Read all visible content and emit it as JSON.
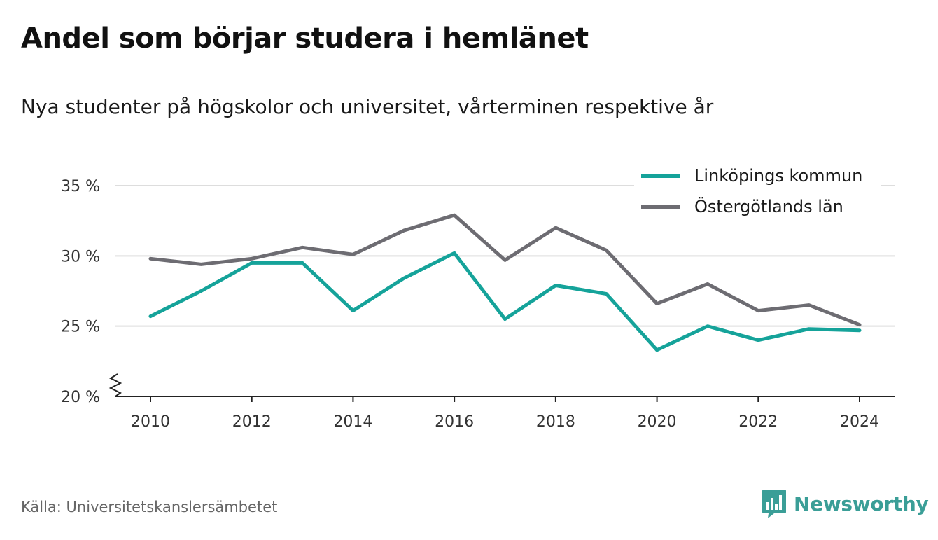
{
  "chart_data": {
    "type": "line",
    "title": "Andel som börjar studera i hemlänet",
    "subtitle": "Nya studenter på högskolor och universitet, vårterminen respektive år",
    "x": [
      2010,
      2011,
      2012,
      2013,
      2014,
      2015,
      2016,
      2017,
      2018,
      2019,
      2020,
      2021,
      2022,
      2023,
      2024
    ],
    "x_ticks": [
      2010,
      2012,
      2014,
      2016,
      2018,
      2020,
      2022,
      2024
    ],
    "y_ticks": [
      20,
      25,
      30,
      35
    ],
    "y_tick_suffix": " %",
    "ylim": [
      20,
      35
    ],
    "y_axis_break": true,
    "grid": true,
    "legend_position": "top-right",
    "series": [
      {
        "name": "Linköpings kommun",
        "color": "#15a39a",
        "values": [
          25.7,
          27.5,
          29.5,
          29.5,
          26.1,
          28.4,
          30.2,
          25.5,
          27.9,
          27.3,
          23.3,
          25.0,
          24.0,
          24.8,
          24.7
        ]
      },
      {
        "name": "Östergötlands län",
        "color": "#6d6c72",
        "values": [
          29.8,
          29.4,
          29.8,
          30.6,
          30.1,
          31.8,
          32.9,
          29.7,
          32.0,
          30.4,
          26.6,
          28.0,
          26.1,
          26.5,
          25.1
        ]
      }
    ]
  },
  "footer": {
    "source": "Källa: Universitetskanslersämbetet",
    "brand": "Newsworthy",
    "brand_color": "#3a9e97",
    "brand_icon": "bar-chart-speech-bubble-icon"
  }
}
